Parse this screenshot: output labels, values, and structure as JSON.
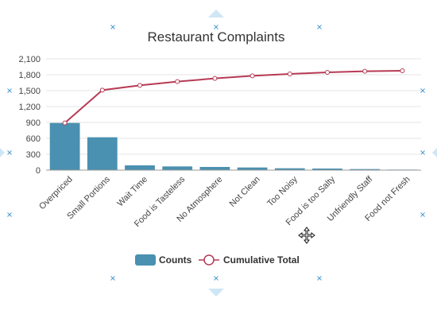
{
  "chart_data": {
    "type": "bar",
    "title": "Restaurant Complaints",
    "xlabel": "",
    "ylabel": "",
    "categories": [
      "Overpriced",
      "Small Portions",
      "Wait Time",
      "Food is Tasteless",
      "No Atmosphere",
      "Not Clean",
      "Too Noisy",
      "Food is too Salty",
      "Unfriendly Staff",
      "Food not Fresh"
    ],
    "series": [
      {
        "name": "Counts",
        "type": "bar",
        "color": "#4a90b0",
        "values": [
          890,
          620,
          90,
          70,
          60,
          50,
          35,
          30,
          20,
          10
        ]
      },
      {
        "name": "Cumulative Total",
        "type": "line",
        "color": "#b73a55",
        "values": [
          890,
          1510,
          1600,
          1670,
          1730,
          1780,
          1815,
          1845,
          1865,
          1875
        ]
      }
    ],
    "ylim": [
      0,
      2100
    ],
    "yticks": [
      "0",
      "300",
      "600",
      "900",
      "1,200",
      "1,500",
      "1,800",
      "2,100"
    ],
    "ytick_values": [
      0,
      300,
      600,
      900,
      1200,
      1500,
      1800,
      2100
    ],
    "grid": true,
    "legend_position": "bottom"
  },
  "icons": {
    "move_cursor": "move-cursor-icon",
    "resize_handle": "resize-handle-icon"
  }
}
